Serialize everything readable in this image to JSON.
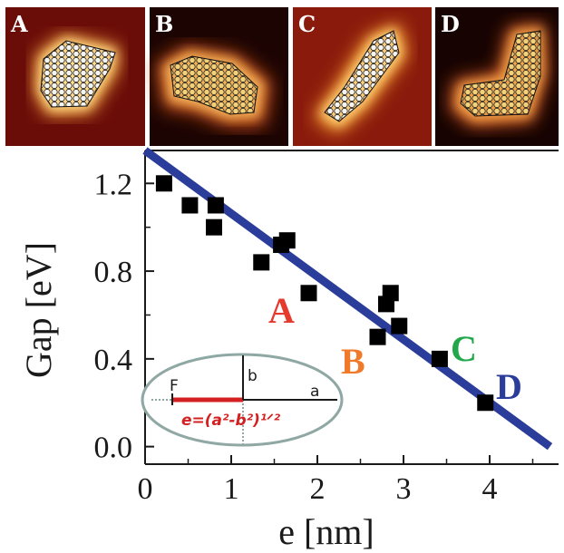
{
  "panels": [
    {
      "label": "A",
      "bg": "#6a0c08"
    },
    {
      "label": "B",
      "bg": "#1c0403"
    },
    {
      "label": "C",
      "bg": "#8a1a0c"
    },
    {
      "label": "D",
      "bg": "#160302"
    }
  ],
  "chart_data": {
    "type": "scatter",
    "xlabel": "e [nm]",
    "ylabel": "Gap [eV]",
    "xlim": [
      0,
      4.8
    ],
    "ylim": [
      -0.08,
      1.35
    ],
    "x_ticks": [
      0,
      1,
      2,
      3,
      4
    ],
    "x_tick_labels": [
      "0",
      "1",
      "2",
      "3",
      "4"
    ],
    "y_ticks": [
      0.0,
      0.4,
      0.8,
      1.2
    ],
    "y_tick_labels": [
      "0.0",
      "0.4",
      "0.8",
      "1.2"
    ],
    "grid": false,
    "points": [
      {
        "x": 0.22,
        "y": 1.2
      },
      {
        "x": 0.52,
        "y": 1.1
      },
      {
        "x": 0.82,
        "y": 1.1
      },
      {
        "x": 0.8,
        "y": 1.0
      },
      {
        "x": 1.35,
        "y": 0.84
      },
      {
        "x": 1.58,
        "y": 0.92
      },
      {
        "x": 1.65,
        "y": 0.94
      },
      {
        "x": 1.9,
        "y": 0.7
      },
      {
        "x": 2.7,
        "y": 0.5
      },
      {
        "x": 2.8,
        "y": 0.65
      },
      {
        "x": 2.85,
        "y": 0.7
      },
      {
        "x": 2.95,
        "y": 0.55
      },
      {
        "x": 3.42,
        "y": 0.4
      },
      {
        "x": 3.95,
        "y": 0.2
      }
    ],
    "fit_line": {
      "x": [
        0,
        4.7
      ],
      "y": [
        1.35,
        0.0
      ],
      "color": "#2b3d9a"
    },
    "point_labels": [
      {
        "text": "A",
        "color": "#e53a2e"
      },
      {
        "text": "B",
        "color": "#f07a2a"
      },
      {
        "text": "C",
        "color": "#22a84a"
      },
      {
        "text": "D",
        "color": "#2b3d9a"
      }
    ],
    "marker_color": "#000000"
  },
  "inset": {
    "focus_label": "F",
    "minor_axis_label": "b",
    "major_axis_label": "a",
    "equation": "e=(a²-b²)¹ᐟ²",
    "ellipse_stroke": "#8fa8a4",
    "equation_color": "#d42020"
  }
}
